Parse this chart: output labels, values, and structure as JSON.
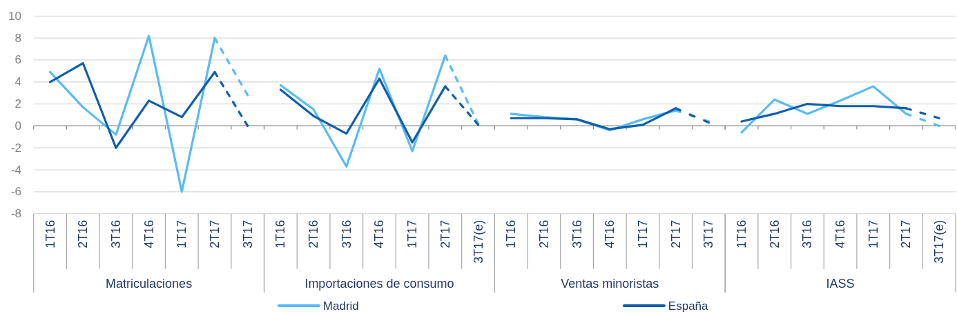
{
  "chart_data": [
    {
      "type": "line",
      "xlabel": "Matriculaciones",
      "categories": [
        "1T16",
        "2T16",
        "3T16",
        "4T16",
        "1T17",
        "2T17",
        "3T17"
      ],
      "series": [
        {
          "name": "Madrid",
          "color": "#57bbf6",
          "values": [
            4.9,
            1.7,
            -0.8,
            8.2,
            -6.0,
            8.0,
            null
          ]
        },
        {
          "name": "España",
          "color": "#0e5eac",
          "values": [
            4.0,
            5.7,
            -2.0,
            2.3,
            0.8,
            4.9,
            null
          ]
        },
        {
          "color": "#57bbf6",
          "line_style": "dashed",
          "values": [
            null,
            null,
            null,
            null,
            null,
            8.0,
            2.8
          ]
        },
        {
          "color": "#0e5eac",
          "line_style": "dashed",
          "values": [
            null,
            null,
            null,
            null,
            null,
            4.9,
            0.0
          ]
        }
      ],
      "ylim": [
        -8,
        10
      ],
      "yticks": [
        -8,
        -6,
        -4,
        -2,
        0,
        2,
        4,
        6,
        8,
        10
      ],
      "grid": "y",
      "legend": "bottom"
    },
    {
      "type": "line",
      "xlabel": "Importaciones de consumo",
      "categories": [
        "1T16",
        "2T16",
        "3T16",
        "4T16",
        "1T17",
        "2T17",
        "3T17(e)"
      ],
      "series": [
        {
          "color": "#57bbf6",
          "values": [
            3.7,
            1.5,
            -3.7,
            5.2,
            -2.3,
            6.4,
            null
          ]
        },
        {
          "color": "#0e5eac",
          "values": [
            3.3,
            0.9,
            -0.7,
            4.3,
            -1.5,
            3.6,
            null
          ]
        },
        {
          "color": "#57bbf6",
          "line_style": "dashed",
          "values": [
            null,
            null,
            null,
            null,
            null,
            6.4,
            0.2
          ]
        },
        {
          "color": "#0e5eac",
          "line_style": "dashed",
          "values": [
            null,
            null,
            null,
            null,
            null,
            3.6,
            0.1
          ]
        }
      ],
      "ylim": [
        -8,
        10
      ],
      "yticks": [
        -8,
        -6,
        -4,
        -2,
        0,
        2,
        4,
        6,
        8,
        10
      ],
      "grid": "y",
      "tick_labels": "x"
    },
    {
      "type": "line",
      "xlabel": "Ventas minoristas",
      "categories": [
        "1T16",
        "2T16",
        "3T16",
        "4T16",
        "1T17",
        "2T17",
        "3T17"
      ],
      "series": [
        {
          "color": "#57bbf6",
          "values": [
            1.1,
            0.8,
            0.6,
            -0.4,
            0.6,
            1.4,
            null
          ]
        },
        {
          "color": "#0e5eac",
          "values": [
            0.7,
            0.7,
            0.6,
            -0.3,
            0.1,
            1.6,
            null
          ]
        },
        {
          "color": "#57bbf6",
          "line_style": "dashed",
          "values": [
            null,
            null,
            null,
            null,
            null,
            1.4,
            0.4
          ]
        },
        {
          "color": "#0e5eac",
          "line_style": "dashed",
          "values": [
            null,
            null,
            null,
            null,
            null,
            1.6,
            0.3
          ]
        }
      ],
      "ylim": [
        -8,
        10
      ],
      "yticks": [
        -8,
        -6,
        -4,
        -2,
        0,
        2,
        4,
        6,
        8,
        10
      ],
      "grid": "y",
      "tick_labels": "x"
    },
    {
      "type": "line",
      "xlabel": "IASS",
      "categories": [
        "1T16",
        "2T16",
        "3T16",
        "4T16",
        "1T17",
        "2T17",
        "3T17(e)"
      ],
      "series": [
        {
          "color": "#57bbf6",
          "values": [
            -0.6,
            2.4,
            1.1,
            2.3,
            3.6,
            1.1,
            null
          ]
        },
        {
          "color": "#0e5eac",
          "values": [
            0.4,
            1.1,
            2.0,
            1.8,
            1.8,
            1.6,
            null
          ]
        },
        {
          "color": "#57bbf6",
          "line_style": "dashed",
          "values": [
            null,
            null,
            null,
            null,
            null,
            1.1,
            0.0
          ]
        },
        {
          "color": "#0e5eac",
          "line_style": "dashed",
          "values": [
            null,
            null,
            null,
            null,
            null,
            1.6,
            0.7
          ]
        }
      ],
      "ylim": [
        -8,
        10
      ],
      "yticks": [
        -8,
        -6,
        -4,
        -2,
        0,
        2,
        4,
        6,
        8,
        10
      ],
      "grid": "y",
      "tick_labels": "x"
    }
  ]
}
